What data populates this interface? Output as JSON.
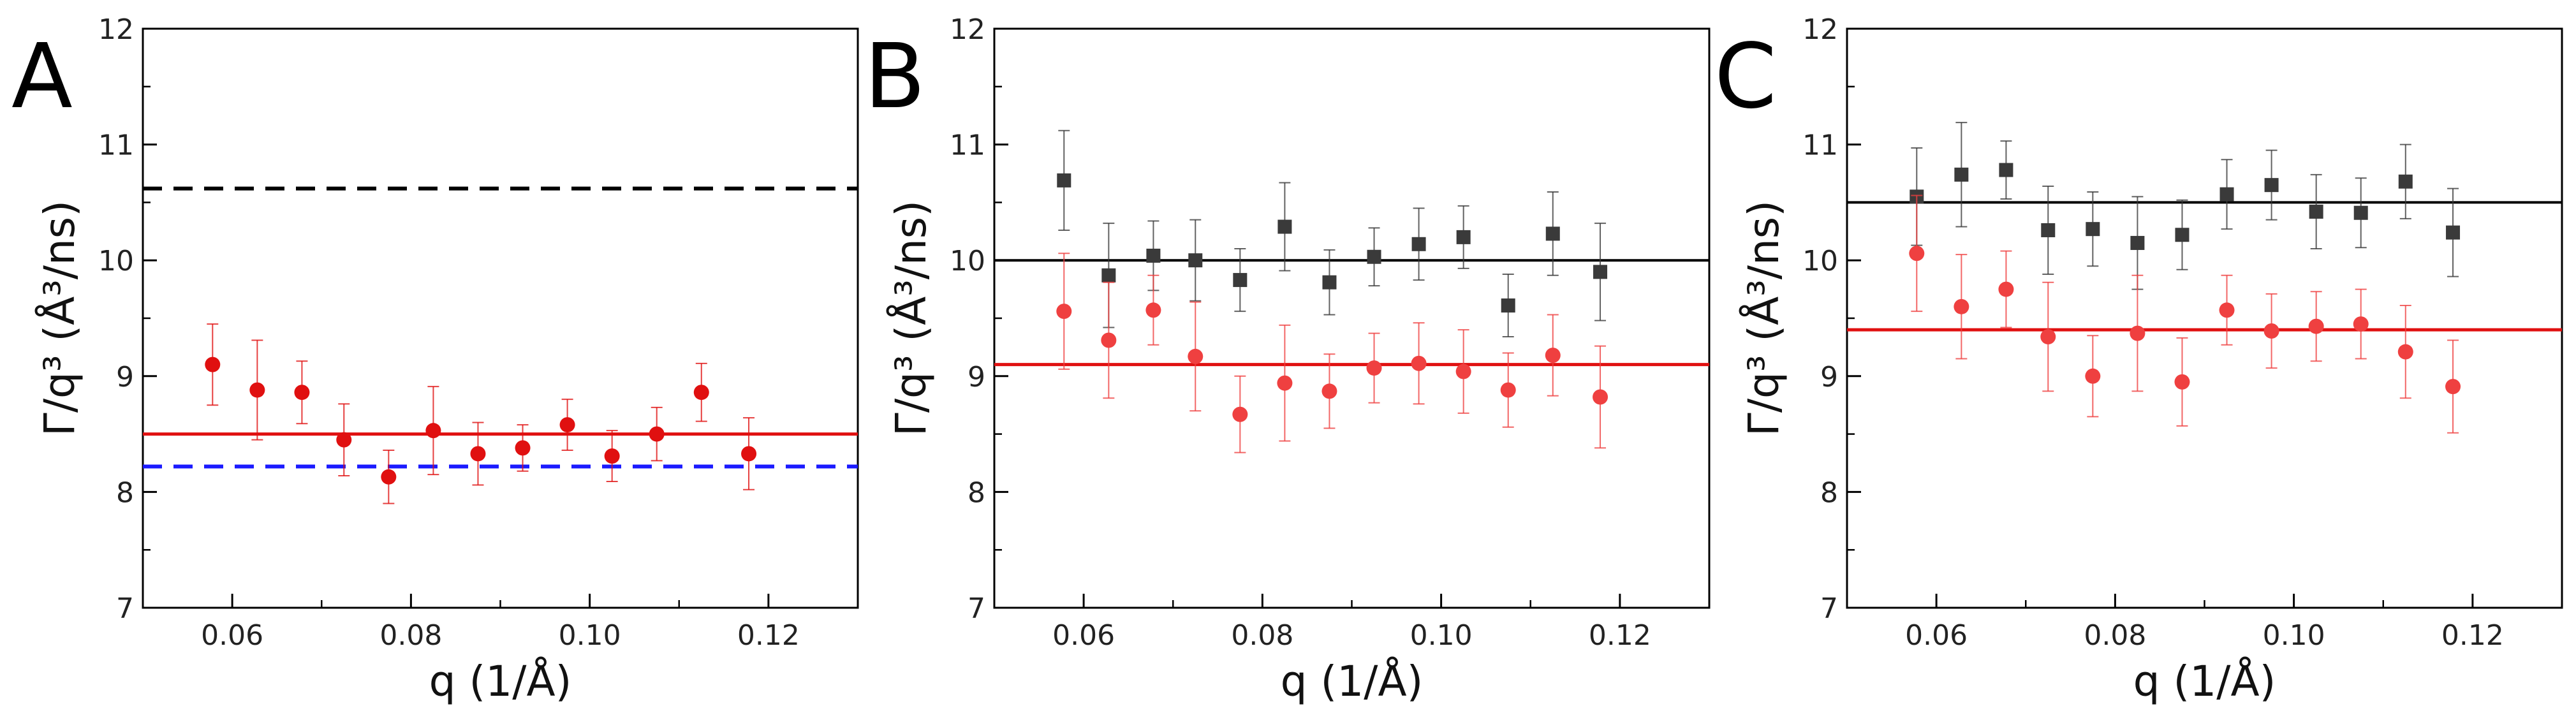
{
  "chart_data": [
    {
      "type": "scatter",
      "panel_label": "A",
      "xlabel": "q  (1/Å)",
      "ylabel": "Γ/q³  (Å³/ns)",
      "xlim": [
        0.05,
        0.13
      ],
      "ylim": [
        7,
        12
      ],
      "xticks": [
        "0.06",
        "0.08",
        "0.10",
        "0.12"
      ],
      "yticks": [
        "7",
        "8",
        "9",
        "10",
        "11",
        "12"
      ],
      "series": [
        {
          "name": "red",
          "marker": "circle",
          "color": "#e01010",
          "x": [
            0.0578,
            0.0628,
            0.0678,
            0.0725,
            0.0775,
            0.0825,
            0.0875,
            0.0925,
            0.0975,
            0.1025,
            0.1075,
            0.1125,
            0.1178
          ],
          "y": [
            9.1,
            8.88,
            8.86,
            8.45,
            8.13,
            8.53,
            8.33,
            8.38,
            8.58,
            8.31,
            8.5,
            8.86,
            8.33
          ],
          "err": [
            0.35,
            0.43,
            0.27,
            0.31,
            0.23,
            0.38,
            0.27,
            0.2,
            0.22,
            0.22,
            0.23,
            0.25,
            0.31
          ]
        }
      ],
      "hlines": [
        {
          "y": 10.62,
          "color": "#000000",
          "style": "dashed"
        },
        {
          "y": 8.5,
          "color": "#e01010",
          "style": "solid"
        },
        {
          "y": 8.22,
          "color": "#1a1aff",
          "style": "dashed"
        }
      ]
    },
    {
      "type": "scatter",
      "panel_label": "B",
      "xlabel": "q  (1/Å)",
      "ylabel": "Γ/q³  (Å³/ns)",
      "xlim": [
        0.05,
        0.13
      ],
      "ylim": [
        7,
        12
      ],
      "xticks": [
        "0.06",
        "0.08",
        "0.10",
        "0.12"
      ],
      "yticks": [
        "7",
        "8",
        "9",
        "10",
        "11",
        "12"
      ],
      "series": [
        {
          "name": "black",
          "marker": "square",
          "color": "#3a3a3a",
          "x": [
            0.0578,
            0.0628,
            0.0678,
            0.0725,
            0.0775,
            0.0825,
            0.0875,
            0.0925,
            0.0975,
            0.1025,
            0.1075,
            0.1125,
            0.1178
          ],
          "y": [
            10.69,
            9.87,
            10.04,
            10.0,
            9.83,
            10.29,
            9.81,
            10.03,
            10.14,
            10.2,
            9.61,
            10.23,
            9.9
          ],
          "err": [
            0.43,
            0.45,
            0.3,
            0.35,
            0.27,
            0.38,
            0.28,
            0.25,
            0.31,
            0.27,
            0.27,
            0.36,
            0.42
          ]
        },
        {
          "name": "red",
          "marker": "circle",
          "color": "#ef4040",
          "x": [
            0.0578,
            0.0628,
            0.0678,
            0.0725,
            0.0775,
            0.0825,
            0.0875,
            0.0925,
            0.0975,
            0.1025,
            0.1075,
            0.1125,
            0.1178
          ],
          "y": [
            9.56,
            9.31,
            9.57,
            9.17,
            8.67,
            8.94,
            8.87,
            9.07,
            9.11,
            9.04,
            8.88,
            9.18,
            8.82
          ],
          "err": [
            0.5,
            0.5,
            0.3,
            0.47,
            0.33,
            0.5,
            0.32,
            0.3,
            0.35,
            0.36,
            0.32,
            0.35,
            0.44
          ]
        }
      ],
      "hlines": [
        {
          "y": 10.0,
          "color": "#000000",
          "style": "solid"
        },
        {
          "y": 9.1,
          "color": "#e01010",
          "style": "solid"
        }
      ]
    },
    {
      "type": "scatter",
      "panel_label": "C",
      "xlabel": "q  (1/Å)",
      "ylabel": "Γ/q³  (Å³/ns)",
      "xlim": [
        0.05,
        0.13
      ],
      "ylim": [
        7,
        12
      ],
      "xticks": [
        "0.06",
        "0.08",
        "0.10",
        "0.12"
      ],
      "yticks": [
        "7",
        "8",
        "9",
        "10",
        "11",
        "12"
      ],
      "series": [
        {
          "name": "black",
          "marker": "square",
          "color": "#3a3a3a",
          "x": [
            0.0578,
            0.0628,
            0.0678,
            0.0725,
            0.0775,
            0.0825,
            0.0875,
            0.0925,
            0.0975,
            0.1025,
            0.1075,
            0.1125,
            0.1178
          ],
          "y": [
            10.55,
            10.74,
            10.78,
            10.26,
            10.27,
            10.15,
            10.22,
            10.57,
            10.65,
            10.42,
            10.41,
            10.68,
            10.24
          ],
          "err": [
            0.42,
            0.45,
            0.25,
            0.38,
            0.32,
            0.4,
            0.3,
            0.3,
            0.3,
            0.32,
            0.3,
            0.32,
            0.38
          ]
        },
        {
          "name": "red",
          "marker": "circle",
          "color": "#ef4040",
          "x": [
            0.0578,
            0.0628,
            0.0678,
            0.0725,
            0.0775,
            0.0825,
            0.0875,
            0.0925,
            0.0975,
            0.1025,
            0.1075,
            0.1125,
            0.1178
          ],
          "y": [
            10.06,
            9.6,
            9.75,
            9.34,
            9.0,
            9.37,
            8.95,
            9.57,
            9.39,
            9.43,
            9.45,
            9.21,
            8.91
          ],
          "err": [
            0.5,
            0.45,
            0.33,
            0.47,
            0.35,
            0.5,
            0.38,
            0.3,
            0.32,
            0.3,
            0.3,
            0.4,
            0.4
          ]
        }
      ],
      "hlines": [
        {
          "y": 10.5,
          "color": "#000000",
          "style": "solid"
        },
        {
          "y": 9.4,
          "color": "#e01010",
          "style": "solid"
        }
      ]
    }
  ]
}
